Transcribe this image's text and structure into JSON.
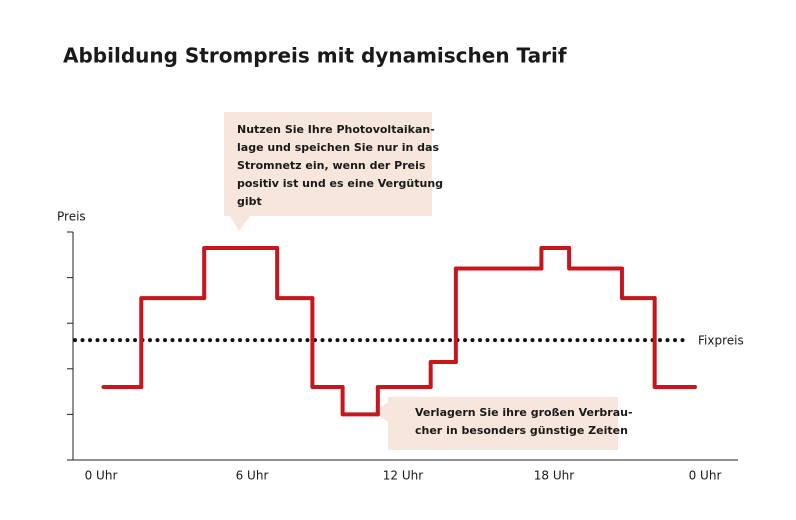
{
  "chart_data": {
    "type": "step-line",
    "title": "Abbildung Strompreis mit dynamischen Tarif",
    "y_label": "Preis",
    "x": [
      0.1,
      1.6,
      4.1,
      7.0,
      8.4,
      9.6,
      11.0,
      13.1,
      14.1,
      17.5,
      18.6,
      20.7,
      22.0,
      23.6
    ],
    "values": [
      1.6,
      3.55,
      4.65,
      3.55,
      1.6,
      1.0,
      1.6,
      2.15,
      4.2,
      4.65,
      4.2,
      3.55,
      1.6,
      1.6
    ],
    "color": "#c8161d",
    "xlim": [
      0,
      24
    ],
    "xticks": [
      {
        "value": 0,
        "label": "0 Uhr"
      },
      {
        "value": 6,
        "label": "6 Uhr"
      },
      {
        "value": 12,
        "label": "12 Uhr"
      },
      {
        "value": 18,
        "label": "18 Uhr"
      },
      {
        "value": 24,
        "label": "0 Uhr"
      }
    ],
    "ylim": [
      0,
      5
    ],
    "yticks": [
      0,
      1,
      2,
      3,
      4,
      5
    ],
    "reference_line": {
      "label": "Fixpreis",
      "value": 2.63
    },
    "annotations": [
      {
        "lines": [
          "Nutzen Sie Ihre Photovoltaikan-",
          "lage und speichen Sie nur in das",
          "Stromnetz ein, wenn der Preis",
          "positiv ist und es eine Vergütung",
          "gibt"
        ]
      },
      {
        "lines": [
          "Verlagern Sie ihre großen Verbrau-",
          "cher in besonders günstige Zeiten"
        ]
      }
    ]
  }
}
